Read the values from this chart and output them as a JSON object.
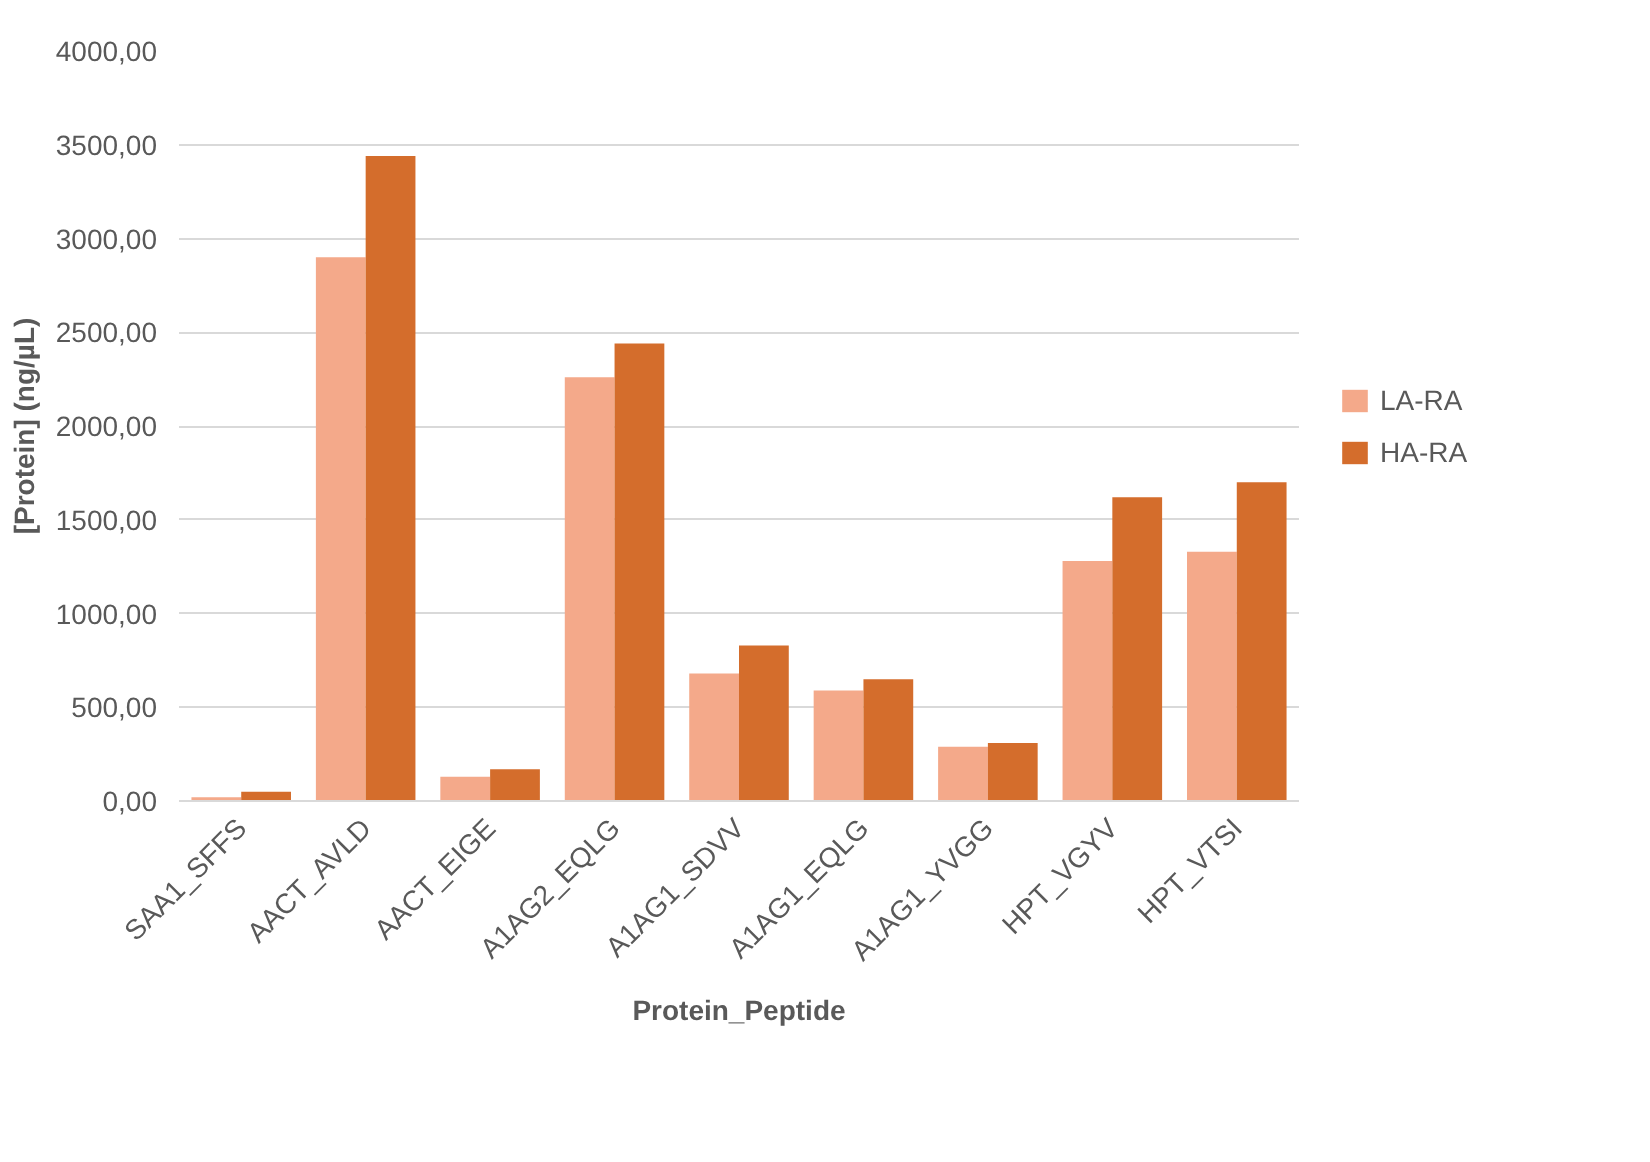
{
  "chart_data": {
    "type": "bar",
    "xlabel": "Protein_Peptide",
    "ylabel": "[Protein] (ng/µL)",
    "categories": [
      "SAA1_SFFS",
      "AACT_AVLD",
      "AACT_EIGE",
      "A1AG2_EQLG",
      "A1AG1_SDVV",
      "A1AG1_EQLG",
      "A1AG1_YVGG",
      "HPT_VGYV",
      "HPT_VTSI"
    ],
    "series": [
      {
        "name": "LA-RA",
        "color": "#f4a98a",
        "values": [
          20,
          2900,
          130,
          2260,
          680,
          590,
          290,
          1280,
          1330
        ]
      },
      {
        "name": "HA-RA",
        "color": "#d46d2c",
        "values": [
          50,
          3440,
          170,
          2440,
          830,
          650,
          310,
          1620,
          1700
        ]
      }
    ],
    "ylim": [
      0,
      4000
    ],
    "yticks": [
      {
        "value": 0,
        "label": "0,00"
      },
      {
        "value": 500,
        "label": "500,00"
      },
      {
        "value": 1000,
        "label": "1000,00"
      },
      {
        "value": 1500,
        "label": "1500,00"
      },
      {
        "value": 2000,
        "label": "2000,00"
      },
      {
        "value": 2500,
        "label": "2500,00"
      },
      {
        "value": 3000,
        "label": "3000,00"
      },
      {
        "value": 3500,
        "label": "3500,00"
      },
      {
        "value": 4000,
        "label": "4000,00"
      }
    ],
    "grid": "y",
    "legend": "right"
  }
}
